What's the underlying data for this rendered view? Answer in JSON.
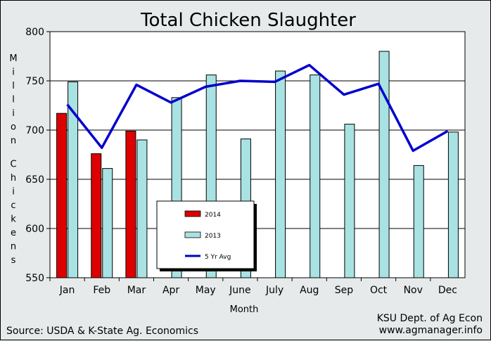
{
  "colors": {
    "background": "#e6eaea",
    "series_2014": "#dd0000",
    "series_2013": "#a9e2e2",
    "series_5yr": "#0000cc"
  },
  "footer": {
    "source": "Source: USDA & K-State Ag. Economics",
    "credit_line1": "KSU Dept. of Ag Econ",
    "credit_line2": "www.agmanager.info"
  },
  "chart_data": {
    "type": "bar",
    "title": "Total Chicken Slaughter",
    "xlabel": "Month",
    "ylabel": "Million Chickens",
    "ylim": [
      550,
      800
    ],
    "yticks": [
      550,
      600,
      650,
      700,
      750,
      800
    ],
    "grid": true,
    "legend_position": "center-left",
    "categories": [
      "Jan",
      "Feb",
      "Mar",
      "Apr",
      "May",
      "June",
      "July",
      "Aug",
      "Sep",
      "Oct",
      "Nov",
      "Dec"
    ],
    "series": [
      {
        "name": "2014",
        "kind": "bar",
        "values": [
          717,
          676,
          699,
          null,
          null,
          null,
          null,
          null,
          null,
          null,
          null,
          null
        ]
      },
      {
        "name": "2013",
        "kind": "bar",
        "values": [
          749,
          661,
          690,
          733,
          756,
          691,
          760,
          756,
          706,
          780,
          664,
          698
        ]
      },
      {
        "name": "5 Yr Avg",
        "kind": "line",
        "values": [
          726,
          682,
          746,
          728,
          744,
          750,
          749,
          766,
          736,
          747,
          679,
          699
        ]
      }
    ]
  }
}
